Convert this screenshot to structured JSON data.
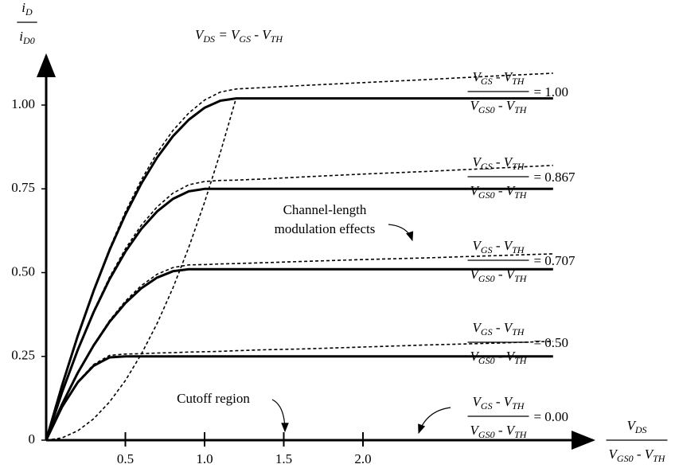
{
  "chart_data": {
    "type": "line",
    "y_label": {
      "numerator": [
        [
          "i",
          "D"
        ]
      ],
      "denominator": [
        [
          "i",
          "D0"
        ]
      ]
    },
    "x_label": {
      "numerator": [
        [
          "V",
          "DS"
        ]
      ],
      "denominator": [
        [
          "V",
          "GS0"
        ],
        [
          " - V",
          "TH"
        ]
      ]
    },
    "ratio_label": {
      "numerator": [
        [
          "V",
          "GS"
        ],
        [
          " - V",
          "TH"
        ]
      ],
      "denominator": [
        [
          "V",
          "GS0"
        ],
        [
          " - V",
          "TH"
        ]
      ]
    },
    "boundary_label": [
      [
        "V",
        "DS"
      ],
      [
        " = V",
        "GS"
      ],
      [
        " - V",
        "TH"
      ]
    ],
    "annotations": [
      [
        "Channel-length",
        "modulation effects"
      ],
      [
        "Cutoff region"
      ]
    ],
    "color": "#000000",
    "xlim": [
      0,
      3.45
    ],
    "ylim": [
      0,
      1.15
    ],
    "xticks": [
      0.5,
      {
        "value": 1,
        "label": "1.0"
      },
      1.5,
      {
        "value": 2,
        "label": "2.0"
      }
    ],
    "yticks": [
      0,
      0.25,
      {
        "value": 0.5,
        "label": "0.50"
      },
      0.75,
      {
        "value": 1,
        "label": "1.00"
      }
    ],
    "x": [
      0,
      0.1,
      0.2,
      0.3,
      0.4,
      0.5,
      0.6,
      0.7,
      0.8,
      0.9,
      1.0,
      1.1,
      1.2,
      1.4,
      1.6,
      2.0,
      2.4,
      2.8,
      3.2
    ],
    "series": [
      {
        "name": "= 1.00",
        "values": [
          0,
          0.163,
          0.312,
          0.446,
          0.567,
          0.673,
          0.765,
          0.843,
          0.907,
          0.956,
          0.992,
          1.013,
          1.02,
          1.02,
          1.02,
          1.02,
          1.02,
          1.02,
          1.02
        ]
      },
      {
        "name": "= 0.867",
        "values": [
          0,
          0.1425,
          0.27,
          0.3825,
          0.48,
          0.5625,
          0.63,
          0.6825,
          0.72,
          0.7425,
          0.75,
          0.75,
          0.75,
          0.75,
          0.75,
          0.75,
          0.75,
          0.75,
          0.75
        ]
      },
      {
        "name": "= 0.707",
        "values": [
          0,
          0.107,
          0.2015,
          0.283,
          0.353,
          0.409,
          0.453,
          0.485,
          0.504,
          0.51,
          0.51,
          0.51,
          0.51,
          0.51,
          0.51,
          0.51,
          0.51,
          0.51,
          0.51
        ]
      },
      {
        "name": "= 0.50",
        "values": [
          0,
          0.099,
          0.173,
          0.222,
          0.247,
          0.25,
          0.25,
          0.25,
          0.25,
          0.25,
          0.25,
          0.25,
          0.25,
          0.25,
          0.25,
          0.25,
          0.25,
          0.25,
          0.25
        ]
      },
      {
        "name": "= 0.00",
        "values": [
          0,
          0,
          0,
          0,
          0,
          0,
          0,
          0,
          0,
          0,
          0,
          0,
          0,
          0,
          0,
          0,
          0,
          0,
          0
        ]
      },
      {
        "dashed": true,
        "values": [
          0,
          0.163,
          0.313,
          0.449,
          0.572,
          0.681,
          0.776,
          0.857,
          0.924,
          0.976,
          1.015,
          1.039,
          1.048,
          1.053,
          1.058,
          1.067,
          1.076,
          1.086,
          1.095
        ]
      },
      {
        "dashed": true,
        "values": [
          0,
          0.143,
          0.272,
          0.386,
          0.486,
          0.571,
          0.641,
          0.696,
          0.737,
          0.762,
          0.772,
          0.775,
          0.776,
          0.78,
          0.785,
          0.794,
          0.802,
          0.811,
          0.82
        ]
      },
      {
        "dashed": true,
        "values": [
          0,
          0.107,
          0.203,
          0.285,
          0.357,
          0.415,
          0.461,
          0.495,
          0.515,
          0.523,
          0.524,
          0.526,
          0.527,
          0.53,
          0.533,
          0.539,
          0.544,
          0.55,
          0.556
        ]
      },
      {
        "dashed": true,
        "values": [
          0,
          0.1,
          0.175,
          0.226,
          0.253,
          0.257,
          0.258,
          0.26,
          0.261,
          0.263,
          0.264,
          0.265,
          0.267,
          0.27,
          0.272,
          0.278,
          0.284,
          0.289,
          0.295
        ]
      },
      {
        "dashed": true,
        "values": [
          0,
          0.007,
          0.028,
          0.064,
          0.114,
          0.178,
          0.256,
          0.348,
          0.454,
          0.575,
          0.71,
          0.859,
          1.022,
          null,
          null,
          null,
          null,
          null,
          null
        ]
      }
    ]
  }
}
